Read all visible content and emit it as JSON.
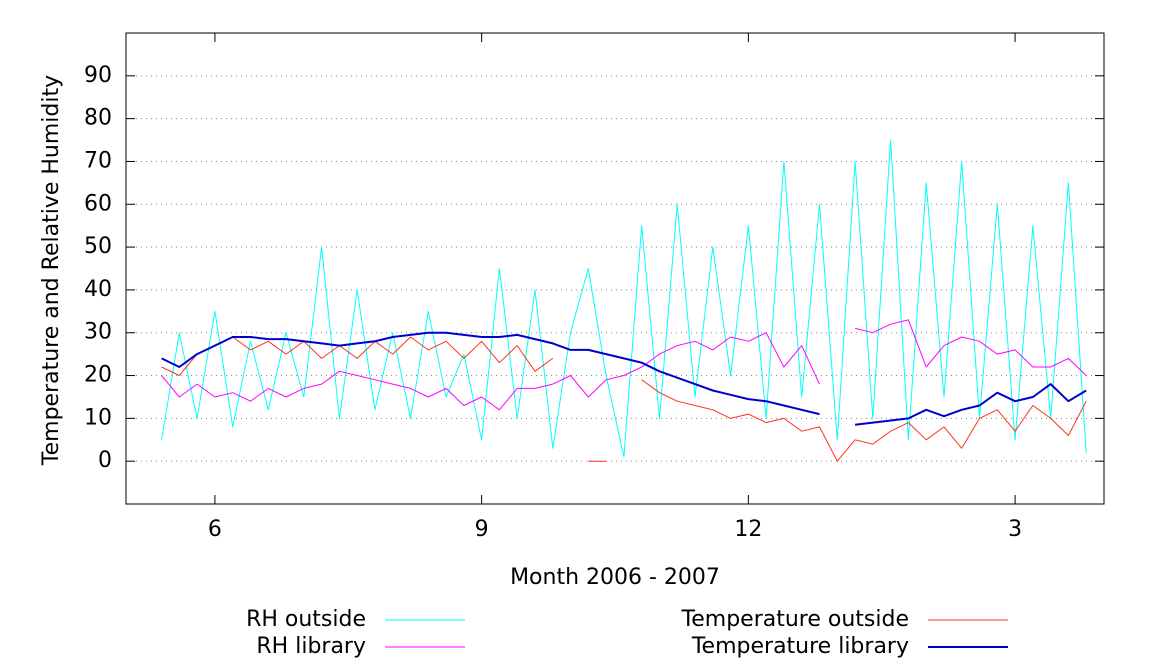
{
  "chart_data": {
    "type": "line",
    "xlabel": "Month 2006 - 2007",
    "ylabel": "Temperature and Relative Humidity",
    "xlim": [
      5,
      16
    ],
    "ylim": [
      -10,
      100
    ],
    "xticks": [
      6,
      9,
      12,
      {
        "value": 15,
        "label": "3"
      }
    ],
    "yticks": [
      0,
      10,
      20,
      30,
      40,
      50,
      60,
      70,
      80,
      90
    ],
    "grid": true,
    "x": [
      5.4,
      5.6,
      5.8,
      6.0,
      6.2,
      6.4,
      6.6,
      6.8,
      7.0,
      7.2,
      7.4,
      7.6,
      7.8,
      8.0,
      8.2,
      8.4,
      8.6,
      8.8,
      9.0,
      9.2,
      9.4,
      9.6,
      9.8,
      10.0,
      10.2,
      10.4,
      10.6,
      10.8,
      11.0,
      11.2,
      11.4,
      11.6,
      11.8,
      12.0,
      12.2,
      12.4,
      12.6,
      12.8,
      13.0,
      13.2,
      13.4,
      13.6,
      13.8,
      14.0,
      14.2,
      14.4,
      14.6,
      14.8,
      15.0,
      15.2,
      15.4,
      15.6,
      15.8
    ],
    "series": [
      {
        "name": "RH outside",
        "color": "#00ffff",
        "values": [
          5,
          30,
          10,
          35,
          8,
          28,
          12,
          30,
          15,
          50,
          10,
          40,
          12,
          30,
          10,
          35,
          15,
          25,
          5,
          45,
          10,
          40,
          3,
          30,
          45,
          20,
          1,
          55,
          10,
          60,
          15,
          50,
          20,
          55,
          10,
          70,
          15,
          60,
          5,
          70,
          10,
          75,
          5,
          65,
          15,
          70,
          10,
          60,
          5,
          55,
          10,
          65,
          2
        ]
      },
      {
        "name": "RH library",
        "color": "#ff00ff",
        "values": [
          20,
          15,
          18,
          15,
          16,
          14,
          17,
          15,
          17,
          18,
          21,
          20,
          19,
          18,
          17,
          15,
          17,
          13,
          15,
          12,
          17,
          17,
          18,
          20,
          15,
          19,
          20,
          22,
          25,
          27,
          28,
          26,
          29,
          28,
          30,
          22,
          27,
          18,
          null,
          31,
          30,
          32,
          33,
          22,
          27,
          29,
          28,
          25,
          26,
          22,
          22,
          24,
          20
        ]
      },
      {
        "name": "Temperature outside",
        "color": "#ff3020",
        "values": [
          22,
          20,
          25,
          27,
          29,
          26,
          28,
          25,
          28,
          24,
          27,
          24,
          28,
          25,
          29,
          26,
          28,
          24,
          28,
          23,
          27,
          21,
          24,
          null,
          0,
          0,
          null,
          19,
          16,
          14,
          13,
          12,
          10,
          11,
          9,
          10,
          7,
          8,
          0,
          5,
          4,
          7,
          9,
          5,
          8,
          3,
          10,
          12,
          7,
          13,
          10,
          6,
          14
        ]
      },
      {
        "name": "Temperature library",
        "color": "#0000cc",
        "values": [
          24,
          22,
          25,
          27,
          29,
          29,
          28.5,
          28.5,
          28,
          27.5,
          27,
          27.5,
          28,
          29,
          29.5,
          30,
          30,
          29.5,
          29,
          29,
          29.5,
          28.5,
          27.5,
          26,
          26,
          25,
          24,
          23,
          21,
          19.5,
          18,
          16.5,
          15.5,
          14.5,
          14,
          13,
          12,
          11,
          null,
          8.5,
          9,
          9.5,
          10,
          12,
          10.5,
          12,
          13,
          16,
          14,
          15,
          18,
          14,
          16.5
        ]
      }
    ]
  }
}
